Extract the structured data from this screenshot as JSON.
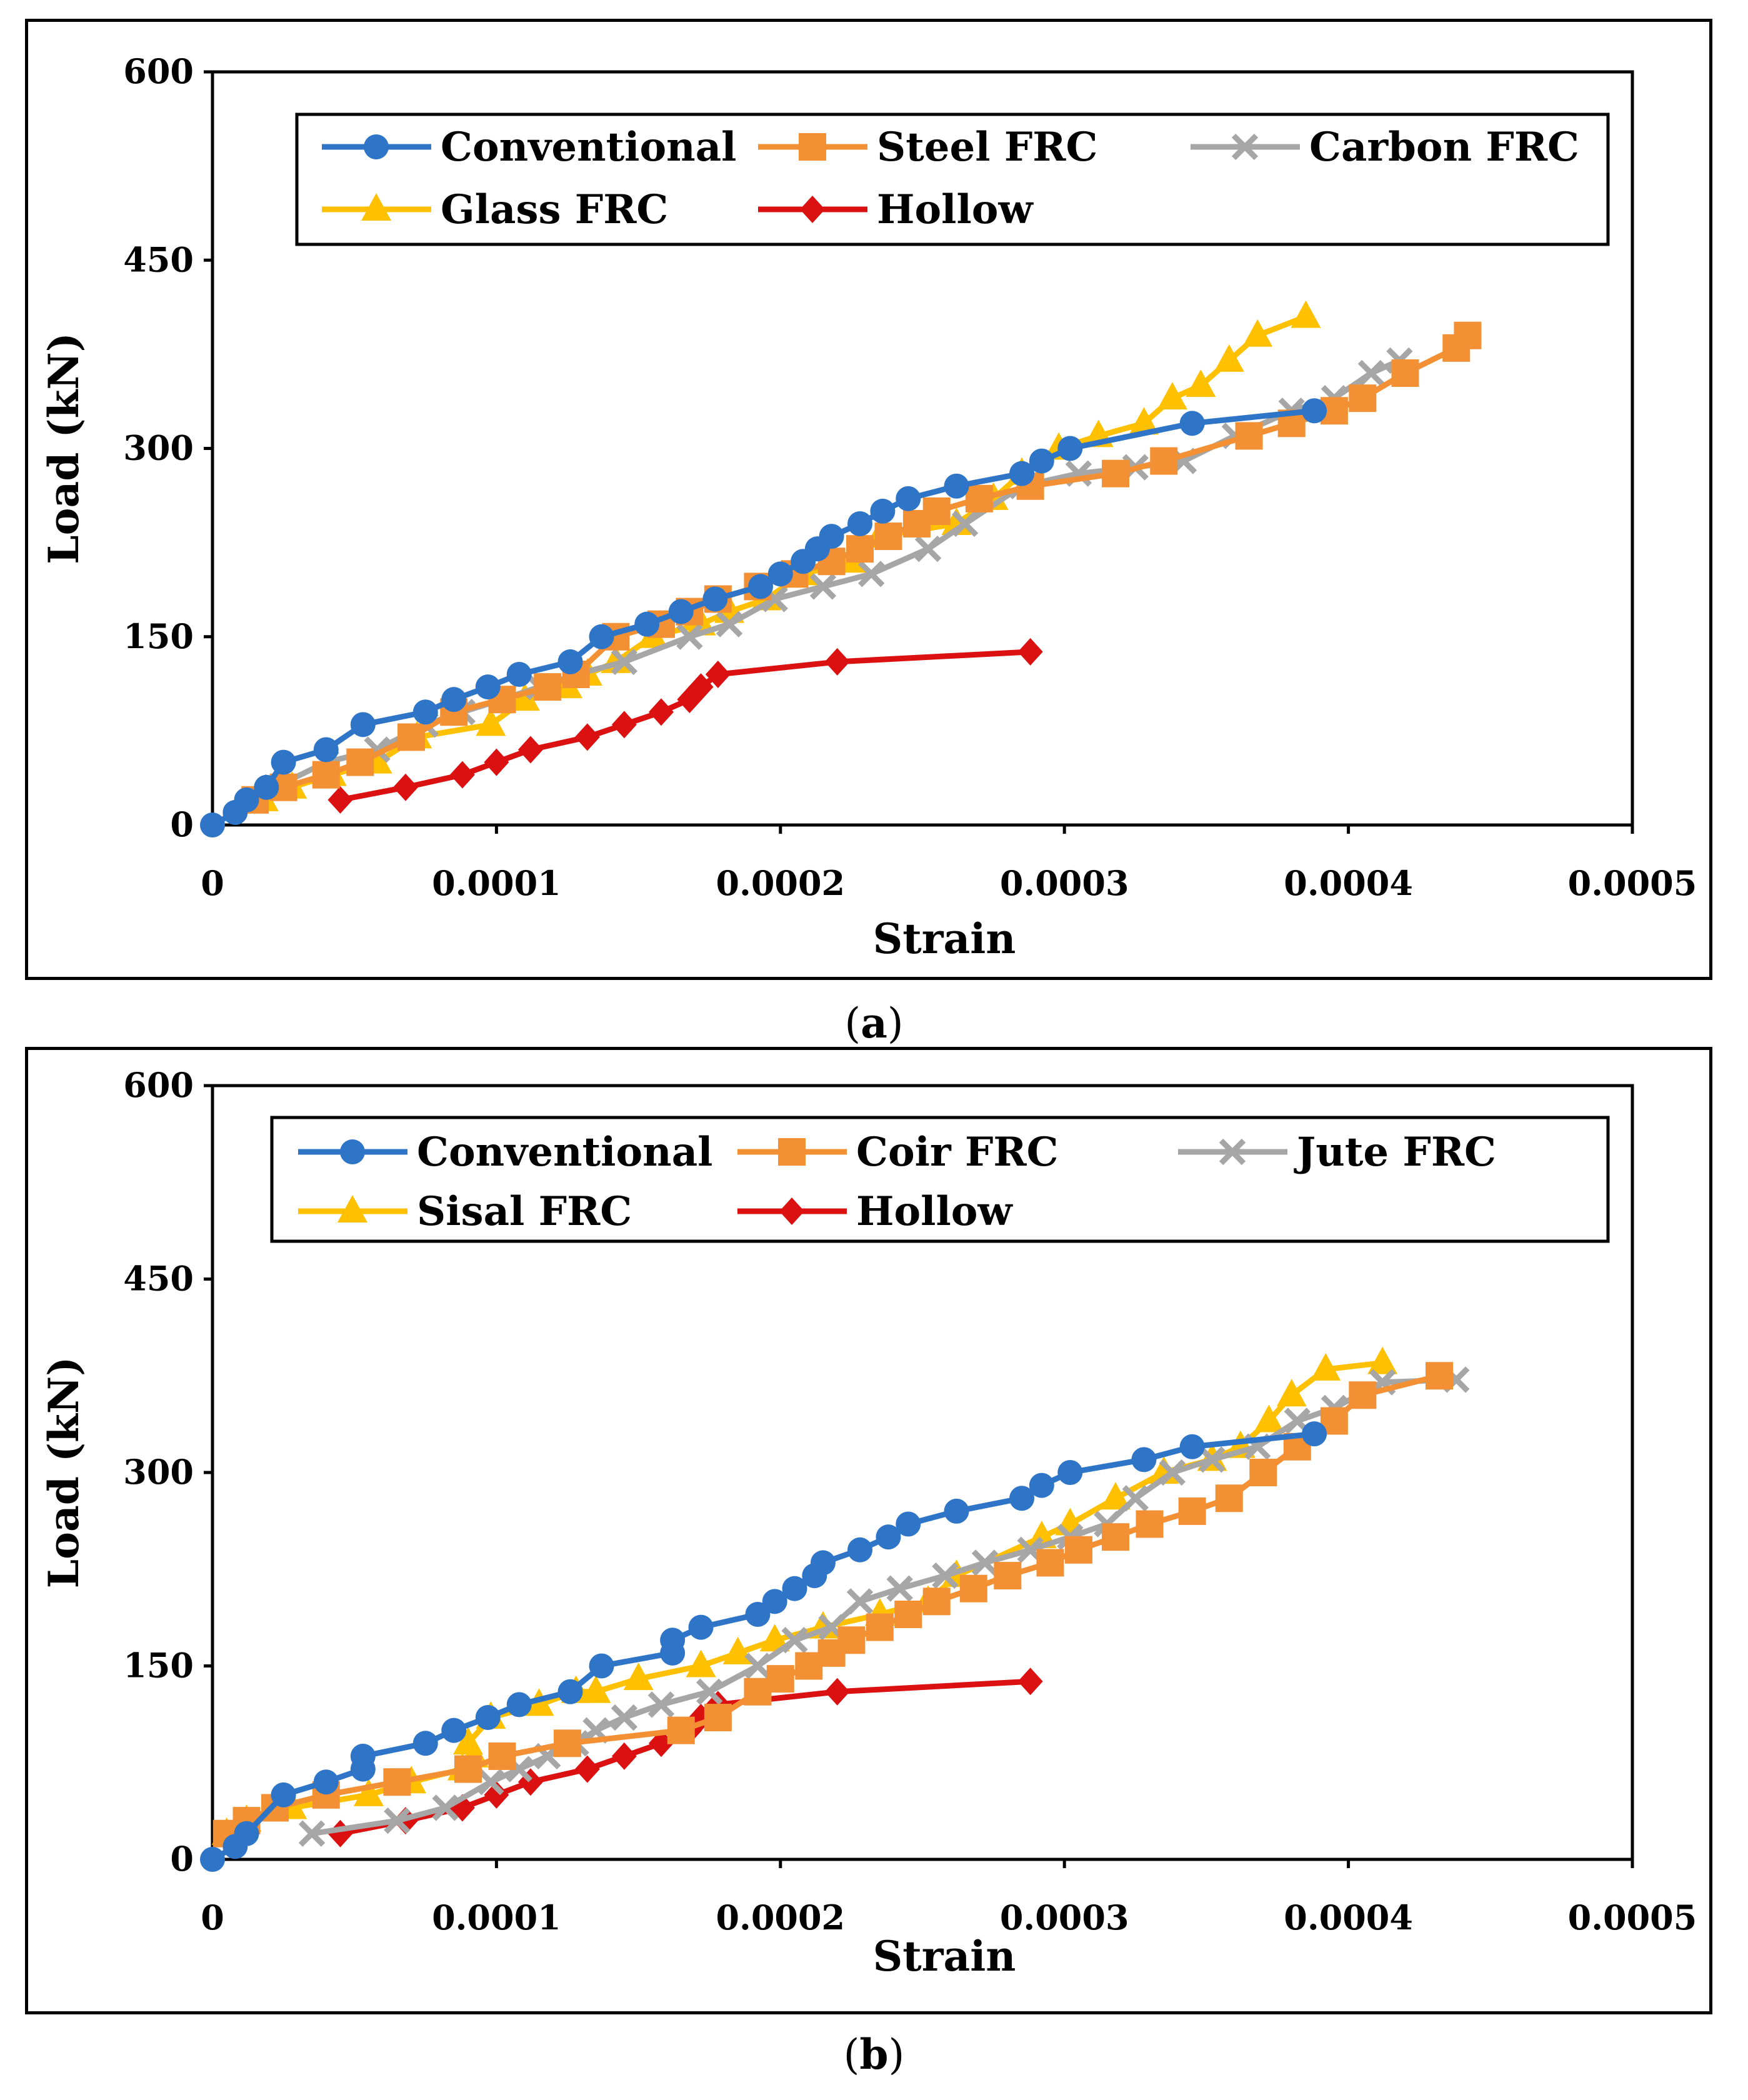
{
  "colors": {
    "Conventional": "#2E75C8",
    "Steel FRC": "#F39034",
    "Carbon FRC": "#A6A6A6",
    "Glass FRC": "#FFC000",
    "Hollow": "#DB1010",
    "Coir FRC": "#F39034",
    "Jute FRC": "#A6A6A6",
    "Sisal FRC": "#FFC000"
  },
  "captions": {
    "a_open": "(",
    "a_label": "a",
    "a_close": ")",
    "b_open": "(",
    "b_label": "b",
    "b_close": ")"
  },
  "chart_data": [
    {
      "id": "a",
      "type": "line",
      "xlabel": "Strain",
      "ylabel": "Load (kN)",
      "xlim": [
        0,
        0.0005
      ],
      "ylim": [
        0,
        600
      ],
      "xticks": [
        "0",
        "0.0001",
        "0.0002",
        "0.0003",
        "0.0004",
        "0.0005"
      ],
      "yticks": [
        "0",
        "150",
        "300",
        "450",
        "600"
      ],
      "legend_position": "top",
      "series": [
        {
          "name": "Conventional",
          "marker": "circle",
          "x": [
            0,
            8e-06,
            1.2e-05,
            1.9e-05,
            2.5e-05,
            4e-05,
            5.3e-05,
            7.5e-05,
            8.5e-05,
            9.7e-05,
            0.000108,
            0.000126,
            0.000137,
            0.000153,
            0.000165,
            0.000177,
            0.000193,
            0.0002,
            0.000208,
            0.000213,
            0.000218,
            0.000228,
            0.000236,
            0.000245,
            0.000262,
            0.000285,
            0.000292,
            0.000302,
            0.000345,
            0.000388
          ],
          "y": [
            0,
            10,
            20,
            30,
            50,
            60,
            80,
            90,
            100,
            110,
            120,
            130,
            150,
            160,
            170,
            180,
            190,
            200,
            210,
            220,
            230,
            240,
            250,
            260,
            270,
            280,
            290,
            300,
            320,
            330
          ]
        },
        {
          "name": "Steel FRC",
          "marker": "square",
          "x": [
            1.5e-05,
            2.5e-05,
            4e-05,
            5.2e-05,
            7e-05,
            8.5e-05,
            0.000102,
            0.000118,
            0.000128,
            0.000142,
            0.000158,
            0.000168,
            0.000178,
            0.000192,
            0.000205,
            0.000218,
            0.000228,
            0.000238,
            0.000248,
            0.000255,
            0.00027,
            0.000288,
            0.000318,
            0.000335,
            0.000365,
            0.00038,
            0.000395,
            0.000405,
            0.00042,
            0.000438,
            0.000442
          ],
          "y": [
            20,
            30,
            40,
            50,
            70,
            90,
            100,
            110,
            120,
            150,
            160,
            170,
            180,
            190,
            200,
            210,
            220,
            230,
            240,
            250,
            260,
            270,
            280,
            290,
            310,
            320,
            330,
            340,
            360,
            380,
            390
          ]
        },
        {
          "name": "Carbon FRC",
          "marker": "x",
          "x": [
            2.2e-05,
            4e-05,
            5.8e-05,
            7.5e-05,
            8.8e-05,
            0.000102,
            0.000115,
            0.000128,
            0.000145,
            0.000168,
            0.000182,
            0.000198,
            0.000215,
            0.000232,
            0.000252,
            0.000265,
            0.000285,
            0.000305,
            0.000325,
            0.000342,
            0.00036,
            0.00038,
            0.000395,
            0.000408,
            0.000418
          ],
          "y": [
            30,
            50,
            60,
            80,
            90,
            100,
            110,
            120,
            130,
            150,
            160,
            180,
            190,
            200,
            220,
            240,
            270,
            280,
            285,
            290,
            310,
            330,
            340,
            360,
            370
          ]
        },
        {
          "name": "Glass FRC",
          "marker": "triangle",
          "x": [
            1.8e-05,
            2.8e-05,
            4.2e-05,
            5.8e-05,
            7.2e-05,
            9.8e-05,
            0.00011,
            0.000125,
            0.000132,
            0.000142,
            0.000155,
            0.000172,
            0.000182,
            0.000195,
            0.000208,
            0.000225,
            0.000235,
            0.000262,
            0.000275,
            0.000285,
            0.000298,
            0.000312,
            0.000328,
            0.000338,
            0.000348,
            0.000358,
            0.000368,
            0.000385
          ],
          "y": [
            20,
            30,
            40,
            50,
            70,
            80,
            100,
            110,
            120,
            130,
            150,
            160,
            170,
            180,
            200,
            210,
            230,
            240,
            260,
            280,
            300,
            310,
            320,
            340,
            350,
            370,
            390,
            405
          ]
        },
        {
          "name": "Hollow",
          "marker": "diamond",
          "x": [
            4.5e-05,
            6.8e-05,
            8.8e-05,
            0.0001,
            0.000112,
            0.000132,
            0.000145,
            0.000158,
            0.000168,
            0.000172,
            0.000178,
            0.00022,
            0.000288
          ],
          "y": [
            20,
            30,
            40,
            50,
            60,
            70,
            80,
            90,
            100,
            110,
            120,
            130,
            138
          ]
        }
      ]
    },
    {
      "id": "b",
      "type": "line",
      "xlabel": "Strain",
      "ylabel": "Load (kN)",
      "xlim": [
        0,
        0.0005
      ],
      "ylim": [
        0,
        600
      ],
      "xticks": [
        "0",
        "0.0001",
        "0.0002",
        "0.0003",
        "0.0004",
        "0.0005"
      ],
      "yticks": [
        "0",
        "150",
        "300",
        "450",
        "600"
      ],
      "legend_position": "top",
      "series": [
        {
          "name": "Conventional",
          "marker": "circle",
          "x": [
            0,
            8e-06,
            1.2e-05,
            2.5e-05,
            4e-05,
            5.3e-05,
            5.3e-05,
            7.5e-05,
            8.5e-05,
            9.7e-05,
            0.000108,
            0.000126,
            0.000137,
            0.000162,
            0.000162,
            0.000172,
            0.000192,
            0.000198,
            0.000205,
            0.000212,
            0.000215,
            0.000228,
            0.000238,
            0.000245,
            0.000262,
            0.000285,
            0.000292,
            0.000302,
            0.000328,
            0.000345,
            0.000388
          ],
          "y": [
            0,
            10,
            20,
            50,
            60,
            70,
            80,
            90,
            100,
            110,
            120,
            130,
            150,
            160,
            170,
            180,
            190,
            200,
            210,
            220,
            230,
            240,
            250,
            260,
            270,
            280,
            290,
            300,
            310,
            320,
            330
          ]
        },
        {
          "name": "Coir FRC",
          "marker": "square",
          "x": [
            5e-06,
            1.2e-05,
            2.2e-05,
            4e-05,
            6.5e-05,
            9e-05,
            0.000102,
            0.000125,
            0.000165,
            0.000178,
            0.000192,
            0.0002,
            0.00021,
            0.000218,
            0.000225,
            0.000235,
            0.000245,
            0.000255,
            0.000268,
            0.00028,
            0.000295,
            0.000305,
            0.000318,
            0.00033,
            0.000345,
            0.000358,
            0.00037,
            0.000382,
            0.000395,
            0.000405,
            0.000432
          ],
          "y": [
            20,
            30,
            40,
            50,
            60,
            70,
            80,
            90,
            100,
            110,
            130,
            140,
            150,
            160,
            170,
            180,
            190,
            200,
            210,
            220,
            230,
            240,
            250,
            260,
            270,
            280,
            300,
            320,
            340,
            360,
            375
          ]
        },
        {
          "name": "Jute FRC",
          "marker": "x",
          "x": [
            3.5e-05,
            6.5e-05,
            8.2e-05,
            9.8e-05,
            0.000108,
            0.000118,
            0.000128,
            0.000135,
            0.000145,
            0.000158,
            0.000175,
            0.000192,
            0.000205,
            0.000218,
            0.000228,
            0.000242,
            0.000258,
            0.000272,
            0.000288,
            0.000302,
            0.000315,
            0.000325,
            0.000338,
            0.000352,
            0.000368,
            0.000382,
            0.000395,
            0.000412,
            0.000438
          ],
          "y": [
            20,
            30,
            40,
            60,
            70,
            80,
            90,
            100,
            110,
            120,
            130,
            150,
            170,
            180,
            200,
            210,
            220,
            230,
            240,
            250,
            260,
            280,
            300,
            310,
            320,
            340,
            350,
            370,
            372
          ]
        },
        {
          "name": "Sisal FRC",
          "marker": "triangle",
          "x": [
            5e-06,
            1.2e-05,
            2.8e-05,
            5.5e-05,
            7e-05,
            8.8e-05,
            9.2e-05,
            9e-05,
            9.8e-05,
            0.000115,
            0.000128,
            0.000135,
            0.00015,
            0.000172,
            0.000185,
            0.000198,
            0.000215,
            0.000235,
            0.000252,
            0.000262,
            0.000292,
            0.000302,
            0.000318,
            0.000335,
            0.000352,
            0.000362,
            0.000372,
            0.00038,
            0.000392,
            0.000412
          ],
          "y": [
            20,
            30,
            40,
            50,
            60,
            70,
            80,
            90,
            110,
            120,
            130,
            130,
            140,
            150,
            160,
            170,
            180,
            190,
            200,
            220,
            250,
            260,
            280,
            300,
            310,
            320,
            340,
            360,
            380,
            385
          ]
        },
        {
          "name": "Hollow",
          "marker": "diamond",
          "x": [
            4.5e-05,
            6.8e-05,
            8.8e-05,
            0.0001,
            0.000112,
            0.000132,
            0.000145,
            0.000158,
            0.000168,
            0.000172,
            0.000178,
            0.00022,
            0.000288
          ],
          "y": [
            20,
            30,
            40,
            50,
            60,
            70,
            80,
            90,
            100,
            110,
            120,
            130,
            138
          ]
        }
      ]
    }
  ]
}
